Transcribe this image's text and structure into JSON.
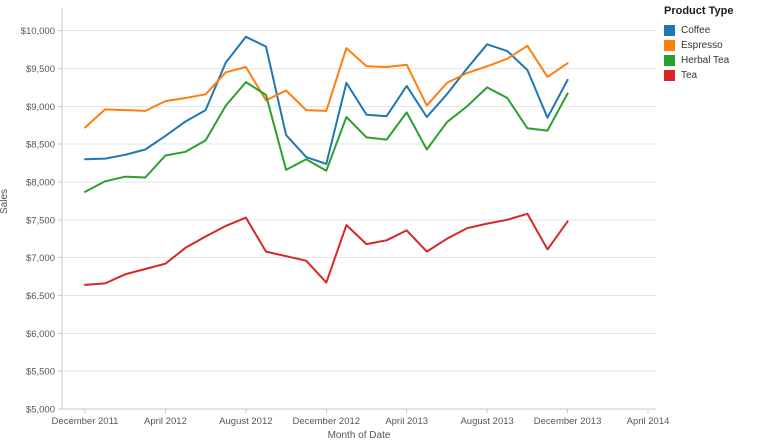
{
  "chart_data": {
    "type": "line",
    "title": "",
    "xlabel": "Month of Date",
    "ylabel": "Sales",
    "grid": "horizontal",
    "ylim": [
      5000,
      10300
    ],
    "legend": {
      "title": "Product Type",
      "position": "top-right"
    },
    "x_tick_labels": [
      "December 2011",
      "April 2012",
      "August 2012",
      "December 2012",
      "April 2013",
      "August 2013",
      "December 2013",
      "April 2014"
    ],
    "x_tick_month_index": [
      0,
      4,
      8,
      12,
      16,
      20,
      24,
      28
    ],
    "y_ticks": {
      "values": [
        5000,
        5500,
        6000,
        6500,
        7000,
        7500,
        8000,
        8500,
        9000,
        9500,
        10000
      ],
      "labels": [
        "$5,000",
        "$5,500",
        "$6,000",
        "$6,500",
        "$7,000",
        "$7,500",
        "$8,000",
        "$8,500",
        "$9,000",
        "$9,500",
        "$10,000"
      ]
    },
    "months": [
      "Dec 2011",
      "Jan 2012",
      "Feb 2012",
      "Mar 2012",
      "Apr 2012",
      "May 2012",
      "Jun 2012",
      "Jul 2012",
      "Aug 2012",
      "Sep 2012",
      "Oct 2012",
      "Nov 2012",
      "Dec 2012",
      "Jan 2013",
      "Feb 2013",
      "Mar 2013",
      "Apr 2013",
      "May 2013",
      "Jun 2013",
      "Jul 2013",
      "Aug 2013",
      "Sep 2013",
      "Oct 2013",
      "Nov 2013",
      "Dec 2013"
    ],
    "series": [
      {
        "name": "Coffee",
        "color": "#1f77b4",
        "values": [
          8300,
          8310,
          8360,
          8430,
          8610,
          8800,
          8950,
          9580,
          9920,
          9790,
          8620,
          8330,
          8240,
          9310,
          8890,
          8870,
          9270,
          8860,
          9160,
          9500,
          9820,
          9730,
          9480,
          8850,
          9350
        ]
      },
      {
        "name": "Espresso",
        "color": "#ff7f0e",
        "values": [
          8720,
          8960,
          8950,
          8940,
          9070,
          9110,
          9160,
          9450,
          9520,
          9080,
          9210,
          8950,
          8940,
          9770,
          9530,
          9520,
          9550,
          9010,
          9310,
          9440,
          9530,
          9630,
          9800,
          9390,
          9570
        ]
      },
      {
        "name": "Herbal Tea",
        "color": "#2ca02c",
        "values": [
          7870,
          8010,
          8070,
          8060,
          8350,
          8400,
          8550,
          9010,
          9320,
          9150,
          8160,
          8300,
          8150,
          8860,
          8590,
          8560,
          8920,
          8430,
          8790,
          9000,
          9250,
          9110,
          8710,
          8680,
          9170
        ]
      },
      {
        "name": "Tea",
        "color": "#d62728",
        "values": [
          6640,
          6660,
          6780,
          6850,
          6920,
          7130,
          7280,
          7420,
          7530,
          7080,
          7020,
          6960,
          6670,
          7430,
          7180,
          7230,
          7360,
          7080,
          7250,
          7390,
          7450,
          7500,
          7580,
          7110,
          7480
        ]
      }
    ]
  }
}
